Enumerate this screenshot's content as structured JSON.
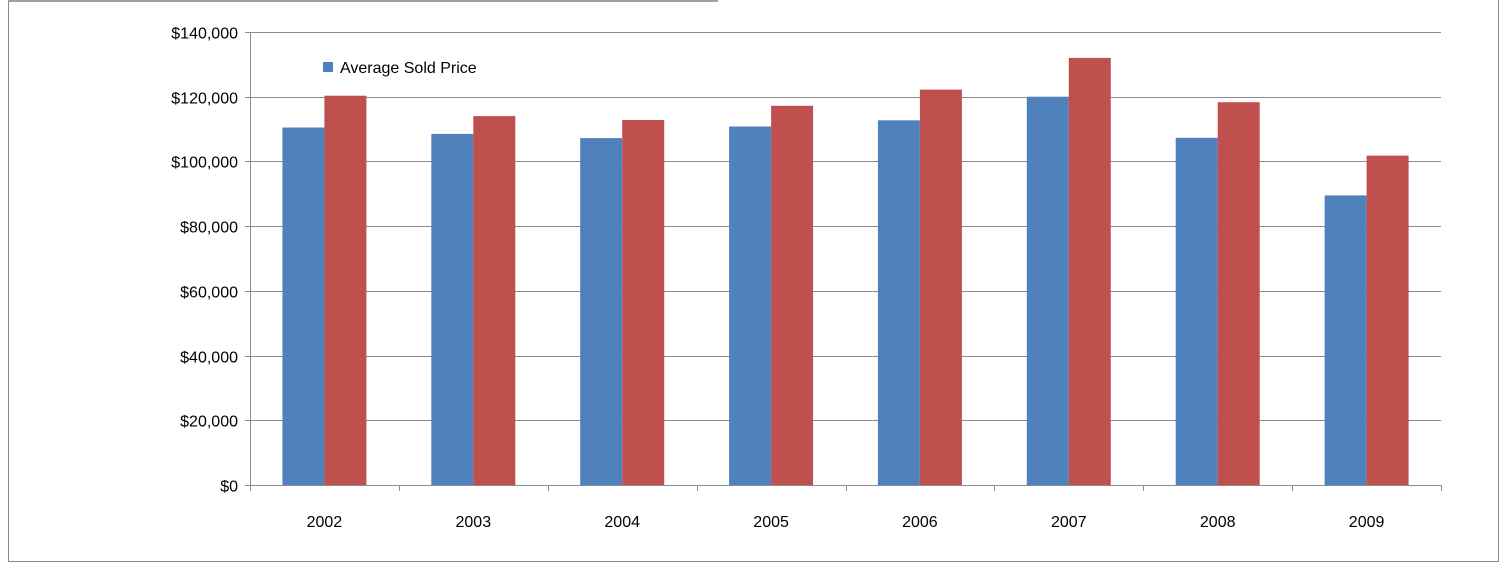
{
  "chart_data": {
    "type": "bar",
    "categories": [
      "2002",
      "2003",
      "2004",
      "2005",
      "2006",
      "2007",
      "2008",
      "2009"
    ],
    "series": [
      {
        "name": "Average Sold Price",
        "color": "#4F81BD",
        "values": [
          110500,
          108500,
          107200,
          110800,
          112700,
          120000,
          107300,
          89500
        ]
      },
      {
        "color": "#C0504D",
        "values": [
          120300,
          114000,
          112800,
          117200,
          122200,
          132000,
          118300,
          101800
        ]
      }
    ],
    "ylim": [
      0,
      140000
    ],
    "y_ticks": [
      0,
      20000,
      40000,
      60000,
      80000,
      100000,
      120000,
      140000
    ],
    "y_tick_labels": [
      "$0",
      "$20,000",
      "$40,000",
      "$60,000",
      "$80,000",
      "$100,000",
      "$120,000",
      "$140,000"
    ],
    "grid": true,
    "legend": {
      "position": "top-left",
      "entries": [
        "Average Sold Price"
      ]
    },
    "title": "",
    "xlabel": "",
    "ylabel": ""
  }
}
